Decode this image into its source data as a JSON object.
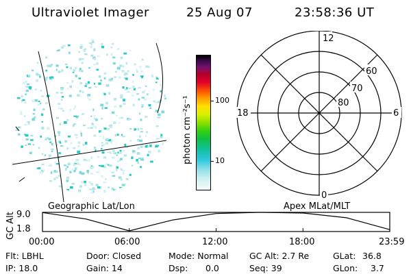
{
  "header": {
    "instrument": "Ultraviolet Imager",
    "date": "25 Aug 07",
    "time": "23:58:36 UT"
  },
  "colorbar": {
    "unit_label": "photon cm⁻²s⁻¹",
    "ticks": [
      "100",
      "10"
    ]
  },
  "polar_plot": {
    "mlt_labels": {
      "top": "12",
      "left": "18",
      "right": "6",
      "bottom": "0"
    },
    "lat_labels": [
      "60",
      "70",
      "80"
    ]
  },
  "panel_labels": {
    "left": "Geographic Lat/Lon",
    "right": "Apex MLat/MLT"
  },
  "timeline": {
    "ylabel": "GC Alt",
    "yticks": [
      "9.0",
      "1.8"
    ],
    "xticks": [
      "00:00",
      "06:00",
      "12:00",
      "18:00",
      "23:59"
    ]
  },
  "chart_data": {
    "type": "line",
    "title": "",
    "xlabel": "",
    "ylabel": "GC Alt",
    "xlim": [
      "00:00",
      "23:59"
    ],
    "ylim": [
      1.8,
      9.0
    ],
    "x": [
      "00:00",
      "03:00",
      "06:00",
      "09:00",
      "12:00",
      "15:00",
      "18:00",
      "21:00",
      "23:59"
    ],
    "series": [
      {
        "values": [
          9.2,
          6.6,
          1.8,
          6.2,
          8.8,
          9.4,
          9.0,
          7.1,
          2.3
        ]
      }
    ]
  },
  "status": {
    "filter": "Flt: LBHL",
    "door": "Door: Closed",
    "mode": "Mode: Normal",
    "gc_alt": "GC Alt: 2.7 Re",
    "glat_label": "GLat:",
    "glat_value": "36.8",
    "ip": "IP: 18.0",
    "gain": "Gain: 14",
    "dsp_label": "Dsp:",
    "dsp_value": "0.0",
    "seq": "Seq: 39",
    "glon_label": "GLon:",
    "glon_value": "3.7"
  },
  "colors": {
    "emission": "#22c8c0",
    "line": "#000000"
  }
}
